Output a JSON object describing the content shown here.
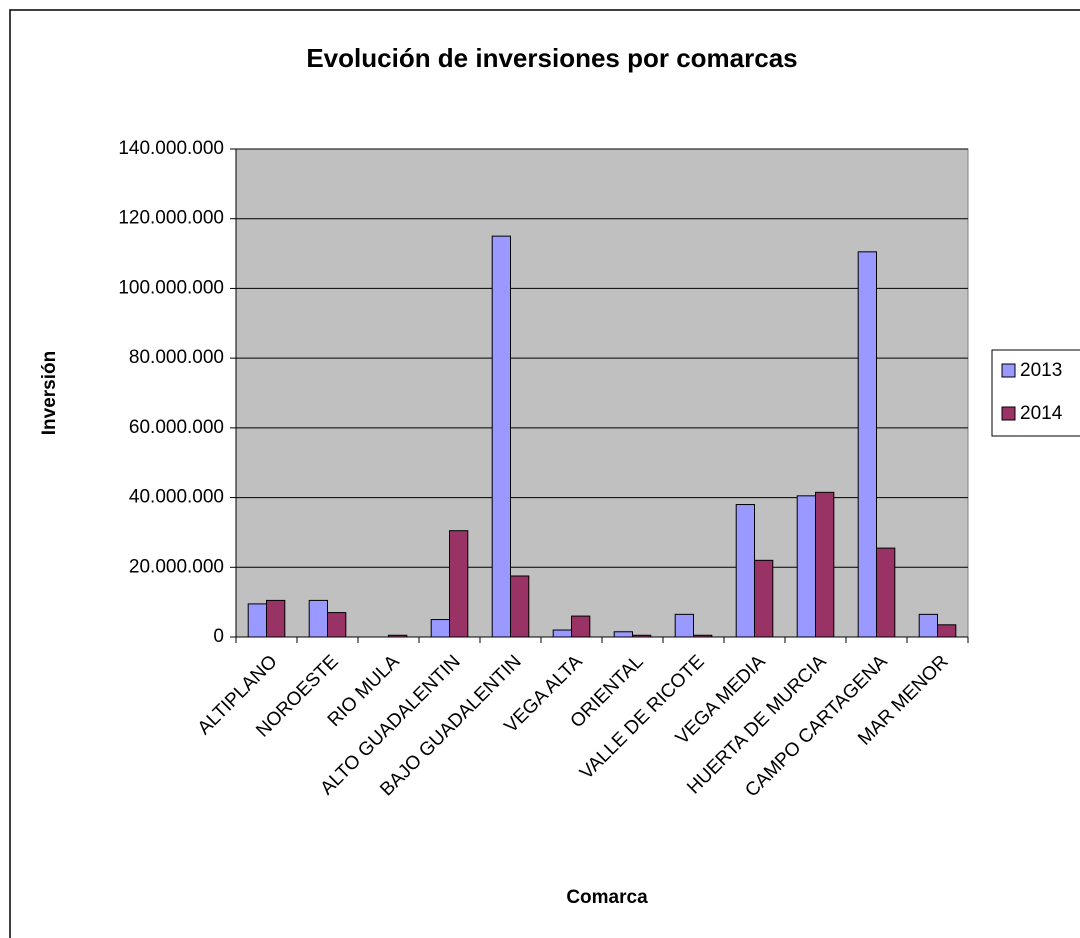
{
  "chart_data": {
    "type": "bar",
    "title": "Evolución de inversiones por comarcas",
    "x_label": "Comarca",
    "y_label": "Inversión",
    "categories": [
      "ALTIPLANO",
      "NOROESTE",
      "RIO MULA",
      "ALTO GUADALENTIN",
      "BAJO GUADALENTIN",
      "VEGA ALTA",
      "ORIENTAL",
      "VALLE DE RICOTE",
      "VEGA MEDIA",
      "HUERTA DE MURCIA",
      "CAMPO CARTAGENA",
      "MAR MENOR"
    ],
    "series": [
      {
        "name": "2013",
        "color": "#9999ff",
        "values": [
          9500000,
          10500000,
          0,
          5000000,
          115000000,
          2000000,
          1500000,
          6500000,
          38000000,
          40500000,
          110500000,
          6500000
        ]
      },
      {
        "name": "2014",
        "color": "#993366",
        "values": [
          10500000,
          7000000,
          500000,
          30500000,
          17500000,
          6000000,
          500000,
          500000,
          22000000,
          41500000,
          25500000,
          3500000
        ]
      }
    ],
    "ylim": [
      0,
      140000000
    ],
    "yticks": [
      0,
      {
        "value": 20000000,
        "label": "20.000.000"
      },
      {
        "value": 40000000,
        "label": "40.000.000"
      },
      {
        "value": 60000000,
        "label": "60.000.000"
      },
      {
        "value": 80000000,
        "label": "80.000.000"
      },
      {
        "value": 100000000,
        "label": "100.000.000"
      },
      {
        "value": 120000000,
        "label": "120.000.000"
      },
      {
        "value": 140000000,
        "label": "140.000.000"
      }
    ],
    "grid": true,
    "plot_background": "#c0c0c0",
    "legend_position": "right"
  }
}
